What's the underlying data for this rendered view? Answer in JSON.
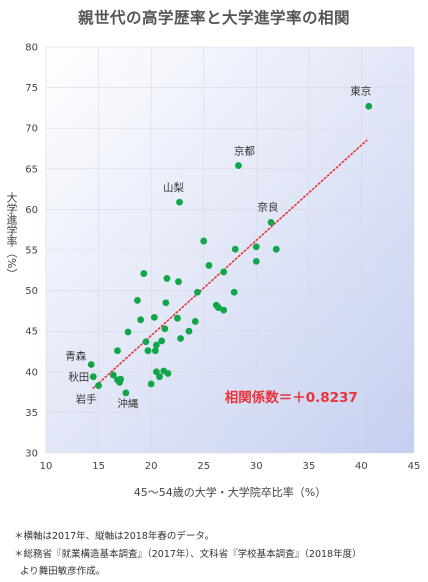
{
  "title": "親世代の高学歴率と大学進学率の相関",
  "chart_data": {
    "type": "scatter",
    "xlabel": "45〜54歳の大学・大学院卒比率（%）",
    "ylabel": "大学進学率（%）",
    "xlim": [
      10,
      45
    ],
    "ylim": [
      30,
      80
    ],
    "xticks": [
      10,
      15,
      20,
      25,
      30,
      35,
      40,
      45
    ],
    "yticks": [
      30,
      35,
      40,
      45,
      50,
      55,
      60,
      65,
      70,
      75,
      80
    ],
    "annotation": "相関係数＝＋0.8237",
    "trendline": {
      "style": "dotted",
      "x": [
        14.5,
        40.5
      ],
      "y": [
        38.0,
        68.5
      ]
    },
    "points": [
      {
        "x": 40.7,
        "y": 72.7,
        "label": "東京"
      },
      {
        "x": 28.3,
        "y": 65.4,
        "label": "京都"
      },
      {
        "x": 22.7,
        "y": 60.9,
        "label": "山梨"
      },
      {
        "x": 31.4,
        "y": 58.4,
        "label": "奈良"
      },
      {
        "x": 14.3,
        "y": 40.9,
        "label": "青森"
      },
      {
        "x": 14.5,
        "y": 39.4,
        "label": "秋田"
      },
      {
        "x": 15.0,
        "y": 38.3,
        "label": "岩手"
      },
      {
        "x": 17.6,
        "y": 37.4,
        "label": "沖縄"
      },
      {
        "x": 25.0,
        "y": 56.1
      },
      {
        "x": 28.0,
        "y": 55.1
      },
      {
        "x": 30.0,
        "y": 55.4
      },
      {
        "x": 31.9,
        "y": 55.1
      },
      {
        "x": 30.0,
        "y": 53.6
      },
      {
        "x": 21.5,
        "y": 51.5
      },
      {
        "x": 22.6,
        "y": 51.1
      },
      {
        "x": 19.3,
        "y": 52.1
      },
      {
        "x": 25.5,
        "y": 53.1
      },
      {
        "x": 26.9,
        "y": 52.3
      },
      {
        "x": 24.4,
        "y": 49.8
      },
      {
        "x": 27.9,
        "y": 49.8
      },
      {
        "x": 18.7,
        "y": 48.8
      },
      {
        "x": 21.4,
        "y": 48.5
      },
      {
        "x": 26.2,
        "y": 48.2
      },
      {
        "x": 26.4,
        "y": 47.9
      },
      {
        "x": 26.9,
        "y": 47.6
      },
      {
        "x": 19.0,
        "y": 46.4
      },
      {
        "x": 20.3,
        "y": 46.7
      },
      {
        "x": 22.5,
        "y": 46.6
      },
      {
        "x": 24.2,
        "y": 46.2
      },
      {
        "x": 17.8,
        "y": 44.9
      },
      {
        "x": 21.3,
        "y": 45.3
      },
      {
        "x": 23.6,
        "y": 45.0
      },
      {
        "x": 19.5,
        "y": 43.7
      },
      {
        "x": 20.5,
        "y": 43.3
      },
      {
        "x": 21.0,
        "y": 43.8
      },
      {
        "x": 22.8,
        "y": 44.1
      },
      {
        "x": 16.8,
        "y": 42.6
      },
      {
        "x": 19.7,
        "y": 42.6
      },
      {
        "x": 20.4,
        "y": 42.6
      },
      {
        "x": 21.2,
        "y": 40.1
      },
      {
        "x": 20.5,
        "y": 40.0
      },
      {
        "x": 21.6,
        "y": 39.8
      },
      {
        "x": 20.8,
        "y": 39.4
      },
      {
        "x": 20.0,
        "y": 38.5
      },
      {
        "x": 16.4,
        "y": 39.6
      },
      {
        "x": 16.8,
        "y": 39.0
      },
      {
        "x": 17.1,
        "y": 39.1
      },
      {
        "x": 17.0,
        "y": 38.7
      }
    ],
    "colors": {
      "point": "#12a54a",
      "trendline": "#e8343a",
      "annotation": "#e8343a",
      "bg_light": "#ffffff",
      "bg_dark": "#c5cff0",
      "grid": "#d9d9e6"
    }
  },
  "footnotes": [
    "＊横軸は2017年、縦軸は2018年春のデータ。",
    "＊総務省『就業構造基本調査』（2017年）、文科省『学校基本調査』（2018年度）",
    "より舞田敏彦作成。"
  ]
}
